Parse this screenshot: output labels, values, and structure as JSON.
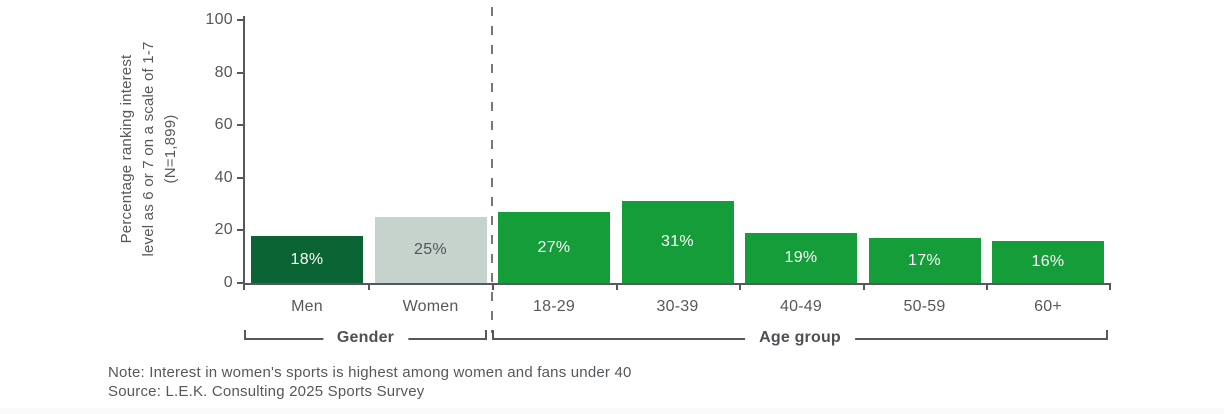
{
  "chart_data": {
    "type": "bar",
    "title": "",
    "ylabel": "Percentage ranking interest level as 6 or 7 on a scale of 1-7 (N=1,899)",
    "ylabel_lines": [
      "Percentage ranking interest",
      "level as 6 or 7 on a scale of 1-7",
      "(N=1,899)"
    ],
    "ylim": [
      0,
      100
    ],
    "yticks": [
      0,
      20,
      40,
      60,
      80,
      100
    ],
    "grid": false,
    "legend": "none",
    "categories": [
      "Men",
      "Women",
      "18-29",
      "30-39",
      "40-49",
      "50-59",
      "60+"
    ],
    "values": [
      18,
      25,
      27,
      31,
      19,
      17,
      16
    ],
    "bar_labels": [
      "18%",
      "25%",
      "27%",
      "31%",
      "19%",
      "17%",
      "16%"
    ],
    "bar_colors": [
      "#0a6433",
      "#c6d2cc",
      "#149d39",
      "#149d39",
      "#149d39",
      "#149d39",
      "#149d39"
    ],
    "bar_label_colors": [
      "#ffffff",
      "#50555a",
      "#ffffff",
      "#ffffff",
      "#ffffff",
      "#ffffff",
      "#ffffff"
    ],
    "groups": [
      {
        "label": "Gender",
        "categories": [
          "Men",
          "Women"
        ]
      },
      {
        "label": "Age group",
        "categories": [
          "18-29",
          "30-39",
          "40-49",
          "50-59",
          "60+"
        ]
      }
    ],
    "separator": "vertical dashed line between Gender group and Age group"
  },
  "footer": {
    "note": "Note: Interest in women's sports is highest among women and fans under 40",
    "source": "Source: L.E.K. Consulting 2025 Sports Survey"
  },
  "colors": {
    "dark_green": "#0a6433",
    "bright_green": "#149d39",
    "light_sage": "#c6d2cc",
    "axis_gray": "#55585c",
    "text_gray": "#55585c",
    "bracket_label_gray": "#4d5054",
    "background": "#ffffff"
  }
}
